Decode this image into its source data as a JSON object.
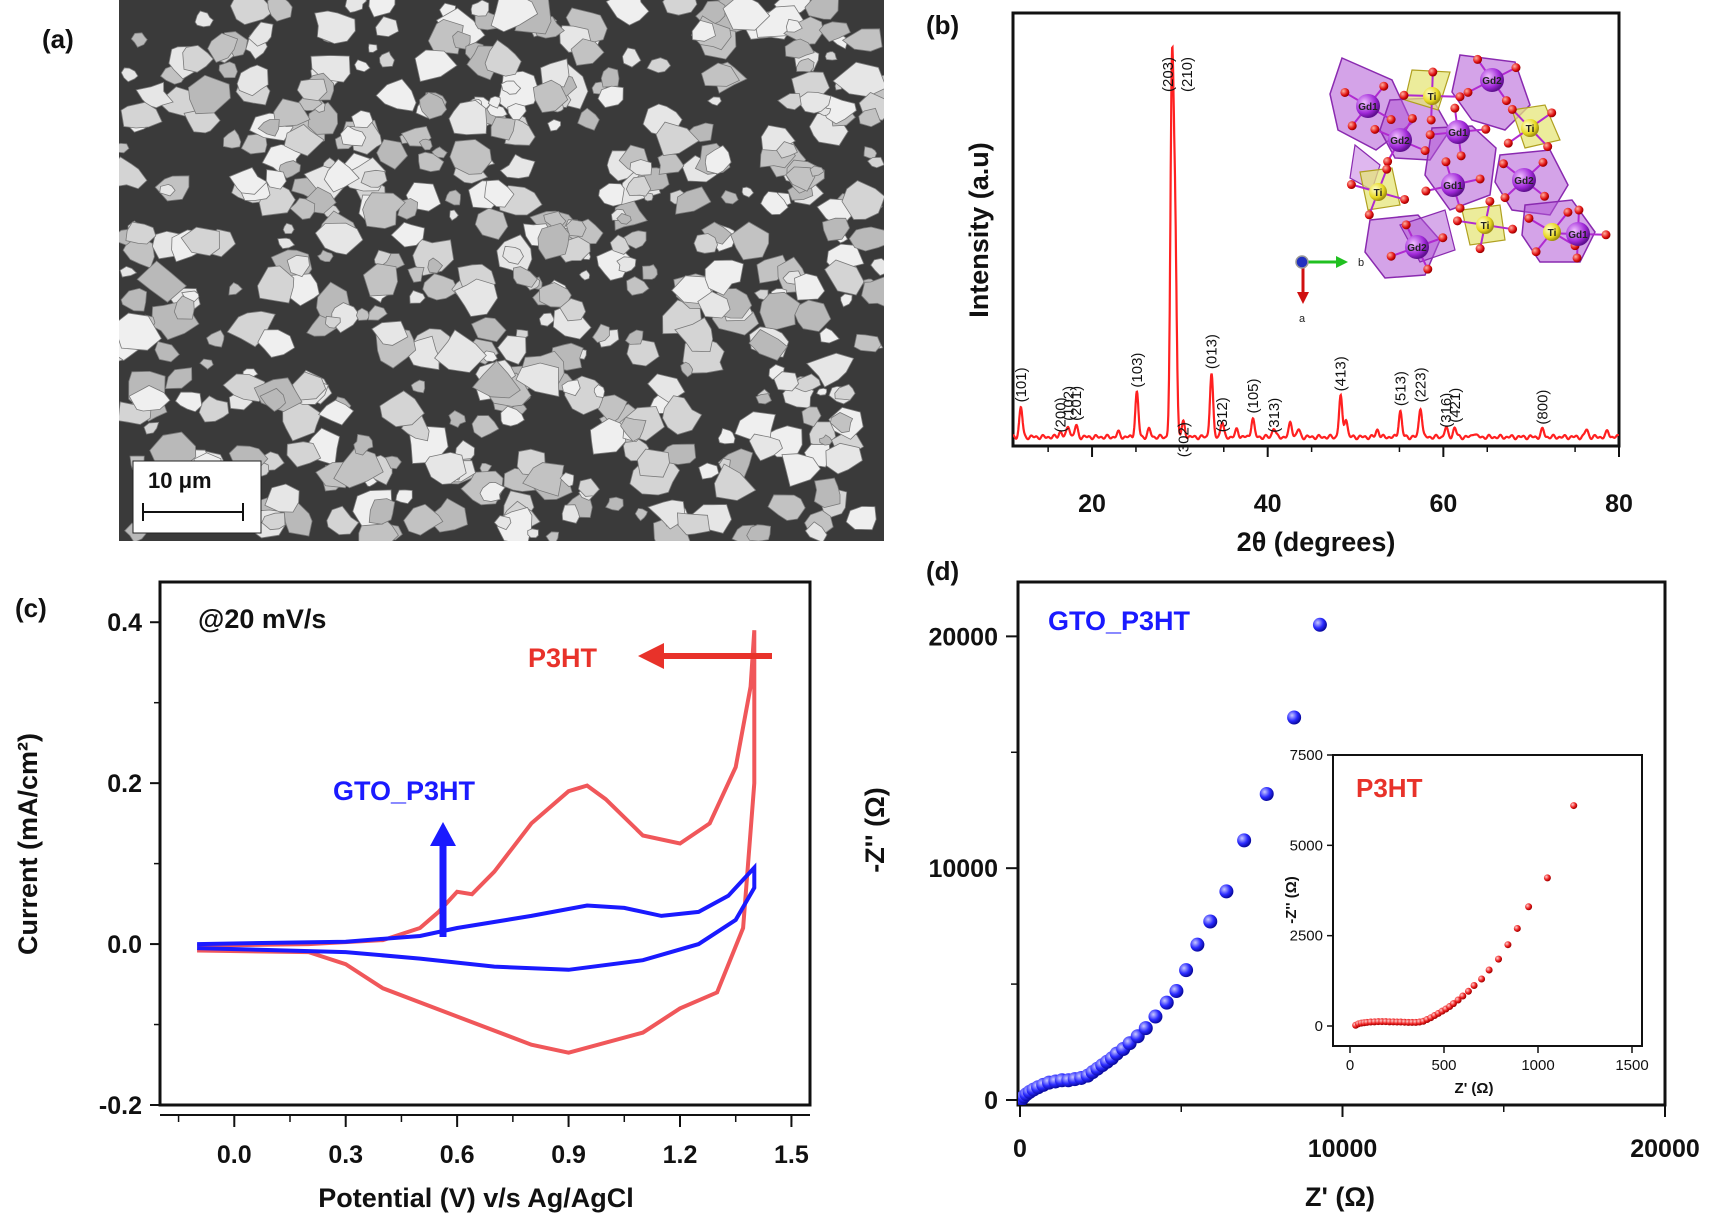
{
  "panels": {
    "a": {
      "label": "(a)",
      "scale_bar": "10 μm"
    },
    "b": {
      "label": "(b)"
    },
    "c": {
      "label": "(c)",
      "annotation": "@20 mV/s",
      "arrow_label_p3ht": "P3HT",
      "arrow_label_gto": "GTO_P3HT"
    },
    "d": {
      "label": "(d)",
      "series_label": "GTO_P3HT",
      "inset_label": "P3HT"
    }
  },
  "colors": {
    "red": "#e8322a",
    "red_cv": "#f0575a",
    "blue": "#1a1aff",
    "xrd": "#ff2020",
    "crystal_purple": "#b057d6",
    "crystal_yellow": "#e6e67a"
  },
  "structure_labels": [
    "Gd1",
    "Ti",
    "Gd2",
    "Gd2",
    "Gd1",
    "Ti",
    "Ti",
    "Gd1",
    "Gd2",
    "Ti",
    "Gd2",
    "Ti",
    "Gd1"
  ],
  "axes_labels": {
    "a": "a",
    "b": "b"
  },
  "chart_data": [
    {
      "id": "xrd",
      "type": "line",
      "title": "",
      "xlabel": "2θ (degrees)",
      "ylabel": "Intensity (a.u)",
      "xlim": [
        11,
        80
      ],
      "xticks": [
        20,
        40,
        60,
        80
      ],
      "peaks": [
        {
          "x": 11.9,
          "h": 0.08,
          "label": "(101)"
        },
        {
          "x": 16.4,
          "h": 0.015,
          "label": "(200)"
        },
        {
          "x": 17.3,
          "h": 0.03,
          "label": "(102)"
        },
        {
          "x": 18.2,
          "h": 0.03,
          "label": "(201)"
        },
        {
          "x": 23.0,
          "h": 0.012,
          "label": ""
        },
        {
          "x": 25.1,
          "h": 0.12,
          "label": "(103)"
        },
        {
          "x": 26.5,
          "h": 0.02,
          "label": ""
        },
        {
          "x": 29.1,
          "h": 0.95,
          "label": "(203)"
        },
        {
          "x": 29.45,
          "h": 0.55,
          "label": "(210)"
        },
        {
          "x": 30.4,
          "h": 0.04,
          "label": "(302)"
        },
        {
          "x": 33.6,
          "h": 0.17,
          "label": "(013)"
        },
        {
          "x": 34.8,
          "h": 0.04,
          "label": "(312)"
        },
        {
          "x": 36.5,
          "h": 0.02,
          "label": ""
        },
        {
          "x": 38.3,
          "h": 0.05,
          "label": "(105)"
        },
        {
          "x": 40.7,
          "h": 0.025,
          "label": "(313)"
        },
        {
          "x": 42.6,
          "h": 0.04,
          "label": ""
        },
        {
          "x": 43.5,
          "h": 0.02,
          "label": ""
        },
        {
          "x": 48.3,
          "h": 0.11,
          "label": "(413)"
        },
        {
          "x": 48.9,
          "h": 0.05,
          "label": ""
        },
        {
          "x": 52.5,
          "h": 0.02,
          "label": ""
        },
        {
          "x": 55.1,
          "h": 0.07,
          "label": "(513)"
        },
        {
          "x": 57.4,
          "h": 0.08,
          "label": "(223)"
        },
        {
          "x": 60.3,
          "h": 0.025,
          "label": "(316)"
        },
        {
          "x": 61.3,
          "h": 0.025,
          "label": "(421)"
        },
        {
          "x": 63.5,
          "h": 0.012,
          "label": ""
        },
        {
          "x": 71.3,
          "h": 0.02,
          "label": "(800)"
        },
        {
          "x": 76.3,
          "h": 0.02,
          "label": ""
        },
        {
          "x": 78.7,
          "h": 0.015,
          "label": ""
        }
      ]
    },
    {
      "id": "cv",
      "type": "line",
      "xlabel": "Potential (V) v/s Ag/AgCl",
      "ylabel": "Current (mA/cm²)",
      "xlim": [
        -0.2,
        1.55
      ],
      "ylim": [
        -0.2,
        0.45
      ],
      "xticks": [
        0.0,
        0.3,
        0.6,
        0.9,
        1.2,
        1.5
      ],
      "yticks": [
        -0.2,
        0.0,
        0.2,
        0.4
      ],
      "series": [
        {
          "name": "P3HT",
          "forward": [
            [
              -0.1,
              -0.002
            ],
            [
              0.2,
              0.0
            ],
            [
              0.4,
              0.005
            ],
            [
              0.5,
              0.02
            ],
            [
              0.55,
              0.04
            ],
            [
              0.6,
              0.065
            ],
            [
              0.64,
              0.062
            ],
            [
              0.7,
              0.09
            ],
            [
              0.8,
              0.15
            ],
            [
              0.9,
              0.19
            ],
            [
              0.95,
              0.197
            ],
            [
              1.0,
              0.18
            ],
            [
              1.1,
              0.135
            ],
            [
              1.2,
              0.125
            ],
            [
              1.28,
              0.15
            ],
            [
              1.35,
              0.22
            ],
            [
              1.39,
              0.32
            ],
            [
              1.4,
              0.39
            ]
          ],
          "reverse": [
            [
              1.4,
              0.39
            ],
            [
              1.4,
              0.2
            ],
            [
              1.37,
              0.02
            ],
            [
              1.3,
              -0.06
            ],
            [
              1.2,
              -0.08
            ],
            [
              1.1,
              -0.11
            ],
            [
              0.9,
              -0.135
            ],
            [
              0.8,
              -0.125
            ],
            [
              0.6,
              -0.09
            ],
            [
              0.4,
              -0.055
            ],
            [
              0.3,
              -0.025
            ],
            [
              0.2,
              -0.01
            ],
            [
              -0.1,
              -0.008
            ]
          ]
        },
        {
          "name": "GTO_P3HT",
          "forward": [
            [
              -0.1,
              0.0
            ],
            [
              0.3,
              0.003
            ],
            [
              0.5,
              0.01
            ],
            [
              0.6,
              0.02
            ],
            [
              0.8,
              0.035
            ],
            [
              0.95,
              0.048
            ],
            [
              1.05,
              0.045
            ],
            [
              1.15,
              0.035
            ],
            [
              1.25,
              0.04
            ],
            [
              1.33,
              0.06
            ],
            [
              1.4,
              0.095
            ]
          ],
          "reverse": [
            [
              1.4,
              0.095
            ],
            [
              1.4,
              0.07
            ],
            [
              1.35,
              0.03
            ],
            [
              1.25,
              0.0
            ],
            [
              1.1,
              -0.02
            ],
            [
              0.9,
              -0.032
            ],
            [
              0.7,
              -0.028
            ],
            [
              0.5,
              -0.018
            ],
            [
              0.3,
              -0.01
            ],
            [
              -0.1,
              -0.005
            ]
          ]
        }
      ]
    },
    {
      "id": "eis",
      "type": "scatter",
      "xlabel": "Z' (Ω)",
      "ylabel": "-Z'' (Ω)",
      "xlim": [
        0,
        20000
      ],
      "ylim": [
        0,
        22000
      ],
      "xticks": [
        0,
        10000,
        20000
      ],
      "yticks": [
        0,
        10000,
        20000
      ],
      "series": [
        {
          "name": "GTO_P3HT",
          "x": [
            60,
            120,
            200,
            300,
            420,
            560,
            720,
            900,
            1100,
            1300,
            1500,
            1700,
            1900,
            2100,
            2250,
            2400,
            2550,
            2700,
            2850,
            3000,
            3200,
            3400,
            3650,
            3900,
            4200,
            4550,
            4850,
            5150,
            5500,
            5900,
            6400,
            6950,
            7650,
            8500,
            9300
          ],
          "y": [
            50,
            150,
            250,
            350,
            450,
            550,
            650,
            750,
            800,
            850,
            850,
            900,
            950,
            1050,
            1200,
            1350,
            1500,
            1650,
            1800,
            2000,
            2200,
            2450,
            2750,
            3100,
            3600,
            4200,
            4700,
            5600,
            6700,
            7700,
            9000,
            11200,
            13200,
            16500,
            20500
          ]
        }
      ]
    },
    {
      "id": "eis_inset",
      "type": "scatter",
      "xlabel": "Z' (Ω)",
      "ylabel": "-Z'' (Ω)",
      "xlim": [
        -50,
        1500
      ],
      "ylim": [
        -400,
        7500
      ],
      "xticks": [
        0,
        500,
        1000,
        1500
      ],
      "yticks": [
        0,
        2500,
        5000,
        7500
      ],
      "series": [
        {
          "name": "P3HT",
          "x": [
            30,
            45,
            60,
            75,
            90,
            110,
            130,
            150,
            170,
            190,
            210,
            230,
            250,
            270,
            290,
            310,
            330,
            350,
            370,
            390,
            410,
            430,
            450,
            470,
            490,
            510,
            530,
            550,
            575,
            600,
            630,
            660,
            700,
            740,
            790,
            840,
            890,
            950,
            1050,
            1190
          ],
          "y": [
            20,
            60,
            80,
            90,
            100,
            110,
            115,
            120,
            120,
            120,
            115,
            115,
            110,
            110,
            105,
            100,
            100,
            100,
            110,
            130,
            180,
            230,
            290,
            350,
            410,
            470,
            540,
            620,
            720,
            830,
            960,
            1120,
            1300,
            1550,
            1850,
            2250,
            2700,
            3300,
            4100,
            6100
          ]
        }
      ]
    }
  ]
}
